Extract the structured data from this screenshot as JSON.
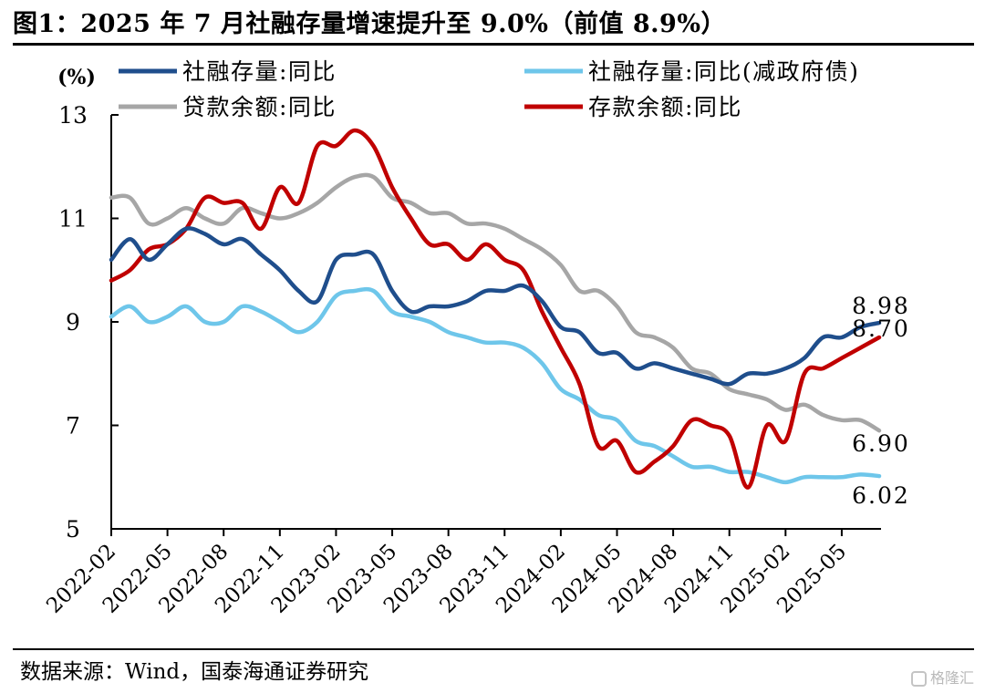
{
  "title": "图1：2025 年 7 月社融存量增速提升至 9.0%（前值 8.9%）",
  "source": "数据来源：Wind，国泰海通证券研究",
  "watermark": "格隆汇",
  "chart_data": {
    "type": "line",
    "unit_label": "(%)",
    "ylim": [
      5,
      13
    ],
    "yticks": [
      "13",
      "11",
      "9",
      "7",
      "5"
    ],
    "xtick_labels": [
      "2022-02",
      "2022-05",
      "2022-08",
      "2022-11",
      "2023-02",
      "2023-05",
      "2023-08",
      "2023-11",
      "2024-02",
      "2024-05",
      "2024-08",
      "2024-11",
      "2025-02",
      "2025-05"
    ],
    "x": [
      "2022-02",
      "2022-03",
      "2022-04",
      "2022-05",
      "2022-06",
      "2022-07",
      "2022-08",
      "2022-09",
      "2022-10",
      "2022-11",
      "2022-12",
      "2023-01",
      "2023-02",
      "2023-03",
      "2023-04",
      "2023-05",
      "2023-06",
      "2023-07",
      "2023-08",
      "2023-09",
      "2023-10",
      "2023-11",
      "2023-12",
      "2024-01",
      "2024-02",
      "2024-03",
      "2024-04",
      "2024-05",
      "2024-06",
      "2024-07",
      "2024-08",
      "2024-09",
      "2024-10",
      "2024-11",
      "2024-12",
      "2025-01",
      "2025-02",
      "2025-03",
      "2025-04",
      "2025-05",
      "2025-06",
      "2025-07"
    ],
    "grid": false,
    "legend_position": "top",
    "series": [
      {
        "name": "社融存量:同比",
        "color": "#1f4e8c",
        "values": [
          10.2,
          10.6,
          10.2,
          10.5,
          10.8,
          10.7,
          10.5,
          10.6,
          10.3,
          10.0,
          9.6,
          9.4,
          10.2,
          10.3,
          10.3,
          9.6,
          9.2,
          9.3,
          9.3,
          9.4,
          9.6,
          9.6,
          9.7,
          9.4,
          8.9,
          8.8,
          8.4,
          8.4,
          8.1,
          8.2,
          8.1,
          8.0,
          7.9,
          7.8,
          8.0,
          8.0,
          8.1,
          8.3,
          8.7,
          8.7,
          8.9,
          8.98
        ],
        "end_label": "8.98"
      },
      {
        "name": "社融存量:同比(减政府债)",
        "color": "#6ec6ea",
        "values": [
          9.1,
          9.3,
          9.0,
          9.1,
          9.3,
          9.0,
          9.0,
          9.3,
          9.2,
          9.0,
          8.8,
          9.0,
          9.5,
          9.6,
          9.6,
          9.2,
          9.1,
          9.0,
          8.8,
          8.7,
          8.6,
          8.6,
          8.5,
          8.2,
          7.7,
          7.5,
          7.2,
          7.1,
          6.7,
          6.6,
          6.4,
          6.2,
          6.2,
          6.1,
          6.1,
          6.0,
          5.9,
          6.0,
          6.0,
          6.0,
          6.05,
          6.02
        ],
        "end_label": "6.02"
      },
      {
        "name": "贷款余额:同比",
        "color": "#a6a6a6",
        "values": [
          11.4,
          11.4,
          10.9,
          11.0,
          11.2,
          11.0,
          10.9,
          11.2,
          11.1,
          11.0,
          11.1,
          11.3,
          11.6,
          11.8,
          11.8,
          11.4,
          11.3,
          11.1,
          11.1,
          10.9,
          10.9,
          10.8,
          10.6,
          10.4,
          10.1,
          9.6,
          9.6,
          9.3,
          8.8,
          8.7,
          8.5,
          8.1,
          8.0,
          7.7,
          7.6,
          7.5,
          7.3,
          7.4,
          7.2,
          7.1,
          7.1,
          6.9
        ],
        "end_label": "6.90"
      },
      {
        "name": "存款余额:同比",
        "color": "#c00000",
        "values": [
          9.8,
          10.0,
          10.4,
          10.5,
          10.8,
          11.4,
          11.3,
          11.3,
          10.8,
          11.6,
          11.3,
          12.4,
          12.4,
          12.7,
          12.4,
          11.6,
          11.0,
          10.5,
          10.5,
          10.2,
          10.5,
          10.2,
          10.0,
          9.2,
          8.5,
          7.8,
          6.6,
          6.7,
          6.1,
          6.3,
          6.6,
          7.1,
          7.0,
          6.8,
          5.8,
          7.0,
          6.7,
          8.0,
          8.1,
          8.3,
          8.5,
          8.7
        ],
        "end_label": "8.70"
      }
    ]
  }
}
